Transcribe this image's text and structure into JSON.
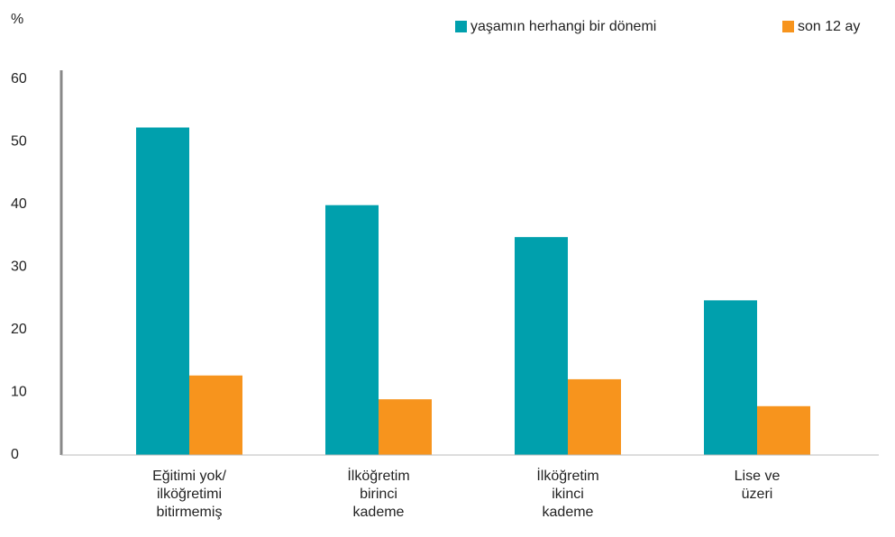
{
  "chart_data": {
    "type": "bar",
    "y_label": "%",
    "categories": [
      "Eğitimi yok/\nilköğretimi\nbitirmemiş",
      "İlköğretim\nbirinci\nkademe",
      "İlköğretim\nikinci\nkademe",
      "Lise ve\nüzeri"
    ],
    "series": [
      {
        "name": "yaşamın herhangi bir dönemi",
        "color": "#00a0ad",
        "values": [
          52.3,
          39.9,
          34.8,
          24.7
        ]
      },
      {
        "name": "son 12 ay",
        "color": "#f7941d",
        "values": [
          12.7,
          8.9,
          12.1,
          7.8
        ]
      }
    ],
    "ylim": [
      0,
      60
    ],
    "yticks": [
      0,
      10,
      20,
      30,
      40,
      50,
      60
    ],
    "grid": false,
    "legend": "top-right"
  }
}
